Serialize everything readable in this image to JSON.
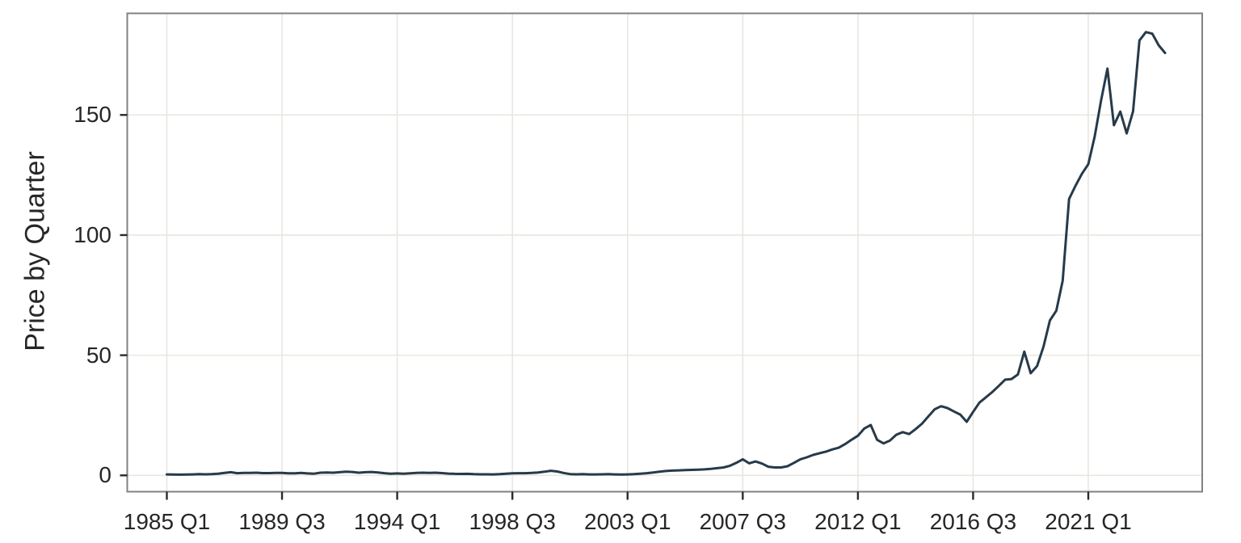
{
  "chart_data": {
    "type": "line",
    "title": "",
    "xlabel": "",
    "ylabel": "Price by Quarter",
    "x_axis": {
      "start_quarter": "1985 Q1",
      "end_quarter": "2024 Q1",
      "frequency": "quarterly",
      "tick_labels": [
        "1985 Q1",
        "1989 Q3",
        "1994 Q1",
        "1998 Q3",
        "2003 Q1",
        "2007 Q3",
        "2012 Q1",
        "2016 Q3",
        "2021 Q1"
      ],
      "tick_quarter_indices": [
        0,
        18,
        36,
        54,
        72,
        90,
        108,
        126,
        144
      ]
    },
    "y_axis": {
      "tick_labels": [
        "0",
        "50",
        "100",
        "150"
      ],
      "tick_values": [
        0,
        50,
        100,
        150
      ],
      "range": [
        -6,
        192
      ]
    },
    "grid": true,
    "legend": false,
    "colors": {
      "line": "#273a4a",
      "grid": "#eae6df",
      "panel_border": "#828282",
      "tick_mark": "#2b2b2b",
      "label": "#262626",
      "background": "#ffffff"
    },
    "series": [
      {
        "name": "Price",
        "color": "#273a4a",
        "start_quarter_index": 0,
        "values": [
          0.4,
          0.35,
          0.3,
          0.35,
          0.4,
          0.5,
          0.45,
          0.5,
          0.7,
          1.0,
          1.3,
          0.9,
          1.0,
          1.0,
          1.1,
          0.95,
          0.95,
          1.0,
          1.05,
          0.85,
          0.85,
          1.0,
          0.8,
          0.7,
          1.1,
          1.2,
          1.1,
          1.3,
          1.5,
          1.4,
          1.1,
          1.3,
          1.4,
          1.2,
          0.9,
          0.7,
          0.8,
          0.7,
          0.85,
          1.0,
          1.1,
          1.0,
          1.1,
          0.95,
          0.75,
          0.65,
          0.6,
          0.65,
          0.5,
          0.45,
          0.45,
          0.4,
          0.5,
          0.7,
          0.85,
          0.9,
          0.9,
          1.0,
          1.2,
          1.5,
          1.9,
          1.6,
          1.0,
          0.55,
          0.45,
          0.5,
          0.4,
          0.4,
          0.45,
          0.5,
          0.4,
          0.35,
          0.4,
          0.5,
          0.7,
          0.9,
          1.2,
          1.5,
          1.8,
          2.0,
          2.1,
          2.2,
          2.3,
          2.4,
          2.5,
          2.7,
          3.0,
          3.3,
          4.0,
          5.2,
          6.7,
          5.0,
          5.8,
          4.9,
          3.6,
          3.3,
          3.3,
          3.8,
          5.2,
          6.7,
          7.5,
          8.5,
          9.2,
          9.9,
          10.8,
          11.5,
          13.0,
          14.8,
          16.5,
          19.5,
          21.0,
          14.8,
          13.3,
          14.5,
          16.9,
          18.0,
          17.2,
          19.2,
          21.5,
          24.5,
          27.5,
          28.8,
          28.0,
          26.6,
          25.3,
          22.3,
          26.4,
          30.3,
          32.5,
          34.7,
          37.2,
          39.8,
          40.1,
          42.0,
          51.5,
          42.5,
          45.5,
          53.5,
          64.5,
          68.5,
          81.0,
          115.0,
          120.5,
          125.5,
          129.5,
          141.0,
          156.0,
          169.3,
          145.7,
          151.4,
          142.3,
          151.5,
          181.0,
          184.5,
          183.8,
          179.0,
          175.8
        ]
      }
    ]
  }
}
